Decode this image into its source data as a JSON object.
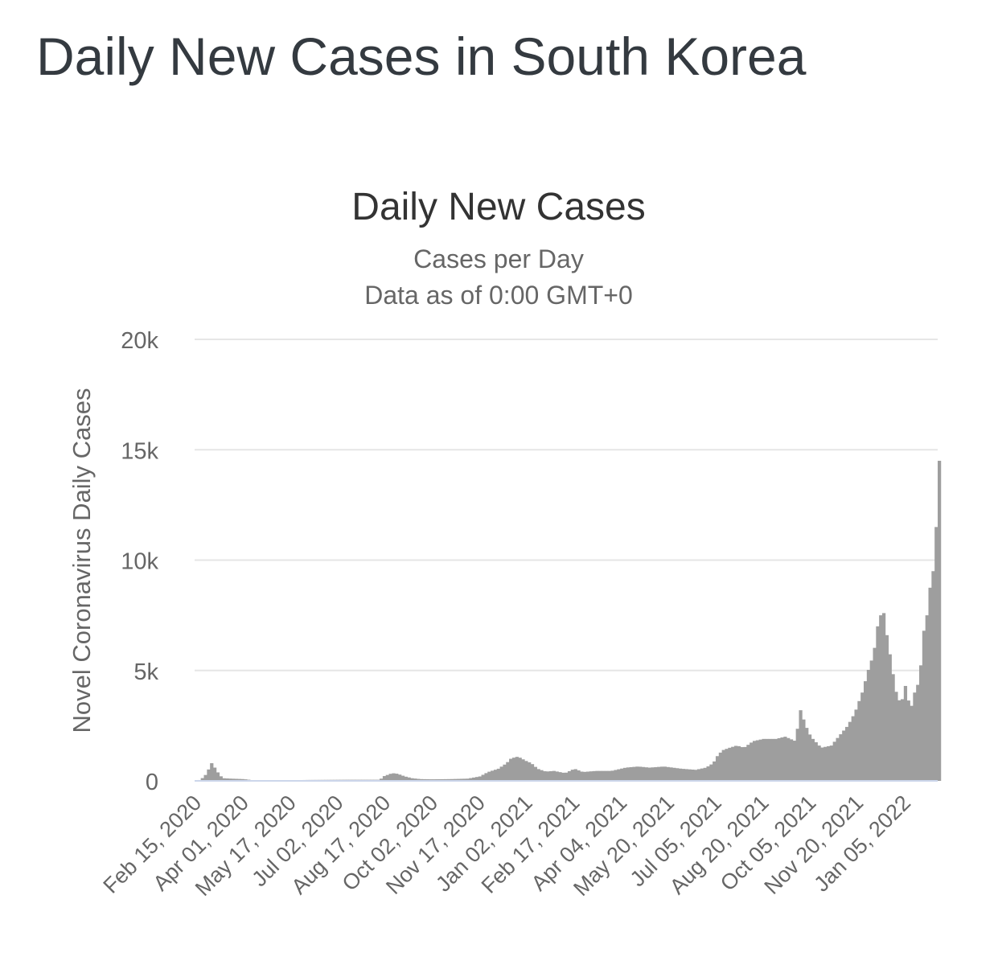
{
  "page": {
    "title": "Daily New Cases in South Korea"
  },
  "colors": {
    "bar": "#9e9e9e",
    "grid": "#e6e6e6",
    "baseline": "#ccd6eb",
    "title_text": "#333333",
    "label_text": "#666666"
  },
  "chart_data": {
    "type": "bar",
    "title": "Daily New Cases",
    "subtitle": "Cases per Day",
    "subtitle2": "Data as of 0:00 GMT+0",
    "xlabel": "",
    "ylabel": "Novel Coronavirus Daily Cases",
    "ylim": [
      0,
      20000
    ],
    "yticks": [
      0,
      5000,
      10000,
      15000,
      20000
    ],
    "ytick_labels": [
      "0",
      "5k",
      "10k",
      "15k",
      "20k"
    ],
    "xlim": [
      "2020-02-15",
      "2022-02-07"
    ],
    "xticks": [
      "2020-02-15",
      "2020-04-01",
      "2020-05-17",
      "2020-07-02",
      "2020-08-17",
      "2020-10-02",
      "2020-11-17",
      "2021-01-02",
      "2021-02-17",
      "2021-04-04",
      "2021-05-20",
      "2021-07-05",
      "2021-08-20",
      "2021-10-05",
      "2021-11-20",
      "2022-01-05"
    ],
    "xtick_labels": [
      "Feb 15, 2020",
      "Apr 01, 2020",
      "May 17, 2020",
      "Jul 02, 2020",
      "Aug 17, 2020",
      "Oct 02, 2020",
      "Nov 17, 2020",
      "Jan 02, 2021",
      "Feb 17, 2021",
      "Apr 04, 2021",
      "May 20, 2021",
      "Jul 05, 2021",
      "Aug 20, 2021",
      "Oct 05, 2021",
      "Nov 20, 2021",
      "Jan 05, 2022"
    ],
    "grid": true,
    "legend": "none",
    "series": [
      {
        "name": "",
        "points": [
          [
            "2020-02-15",
            0
          ],
          [
            "2020-02-19",
            50
          ],
          [
            "2020-02-23",
            200
          ],
          [
            "2020-02-26",
            400
          ],
          [
            "2020-02-29",
            750
          ],
          [
            "2020-03-02",
            850
          ],
          [
            "2020-03-04",
            600
          ],
          [
            "2020-03-06",
            450
          ],
          [
            "2020-03-09",
            250
          ],
          [
            "2020-03-12",
            120
          ],
          [
            "2020-03-20",
            100
          ],
          [
            "2020-04-01",
            80
          ],
          [
            "2020-04-10",
            30
          ],
          [
            "2020-05-01",
            10
          ],
          [
            "2020-06-01",
            40
          ],
          [
            "2020-07-10",
            50
          ],
          [
            "2020-08-12",
            50
          ],
          [
            "2020-08-15",
            200
          ],
          [
            "2020-08-18",
            250
          ],
          [
            "2020-08-22",
            320
          ],
          [
            "2020-08-26",
            350
          ],
          [
            "2020-08-30",
            300
          ],
          [
            "2020-09-05",
            200
          ],
          [
            "2020-09-12",
            120
          ],
          [
            "2020-09-20",
            80
          ],
          [
            "2020-10-01",
            70
          ],
          [
            "2020-10-20",
            80
          ],
          [
            "2020-11-05",
            100
          ],
          [
            "2020-11-17",
            200
          ],
          [
            "2020-11-25",
            400
          ],
          [
            "2020-12-05",
            550
          ],
          [
            "2020-12-13",
            800
          ],
          [
            "2020-12-17",
            1000
          ],
          [
            "2020-12-20",
            1050
          ],
          [
            "2020-12-24",
            1100
          ],
          [
            "2020-12-26",
            1050
          ],
          [
            "2021-01-01",
            900
          ],
          [
            "2021-01-06",
            800
          ],
          [
            "2021-01-12",
            550
          ],
          [
            "2021-01-20",
            420
          ],
          [
            "2021-01-28",
            450
          ],
          [
            "2021-02-08",
            350
          ],
          [
            "2021-02-17",
            550
          ],
          [
            "2021-02-25",
            400
          ],
          [
            "2021-03-10",
            450
          ],
          [
            "2021-03-25",
            450
          ],
          [
            "2021-04-08",
            600
          ],
          [
            "2021-04-20",
            650
          ],
          [
            "2021-05-01",
            600
          ],
          [
            "2021-05-15",
            650
          ],
          [
            "2021-06-01",
            550
          ],
          [
            "2021-06-15",
            500
          ],
          [
            "2021-06-25",
            600
          ],
          [
            "2021-07-02",
            800
          ],
          [
            "2021-07-07",
            1200
          ],
          [
            "2021-07-12",
            1400
          ],
          [
            "2021-07-18",
            1500
          ],
          [
            "2021-07-25",
            1600
          ],
          [
            "2021-08-01",
            1500
          ],
          [
            "2021-08-10",
            1800
          ],
          [
            "2021-08-20",
            1900
          ],
          [
            "2021-09-01",
            1900
          ],
          [
            "2021-09-10",
            2000
          ],
          [
            "2021-09-20",
            1800
          ],
          [
            "2021-09-25",
            3200
          ],
          [
            "2021-09-30",
            2500
          ],
          [
            "2021-10-05",
            2000
          ],
          [
            "2021-10-15",
            1500
          ],
          [
            "2021-10-25",
            1600
          ],
          [
            "2021-11-01",
            2000
          ],
          [
            "2021-11-10",
            2500
          ],
          [
            "2021-11-17",
            3100
          ],
          [
            "2021-11-24",
            4000
          ],
          [
            "2021-12-01",
            5200
          ],
          [
            "2021-12-05",
            5700
          ],
          [
            "2021-12-09",
            7000
          ],
          [
            "2021-12-12",
            7500
          ],
          [
            "2021-12-14",
            7800
          ],
          [
            "2021-12-16",
            7400
          ],
          [
            "2021-12-19",
            6200
          ],
          [
            "2021-12-22",
            5500
          ],
          [
            "2021-12-25",
            4500
          ],
          [
            "2021-12-28",
            3800
          ],
          [
            "2022-01-01",
            3500
          ],
          [
            "2022-01-05",
            4300
          ],
          [
            "2022-01-10",
            3200
          ],
          [
            "2022-01-15",
            4200
          ],
          [
            "2022-01-19",
            4500
          ],
          [
            "2022-01-22",
            6700
          ],
          [
            "2022-01-25",
            7000
          ],
          [
            "2022-01-28",
            8500
          ],
          [
            "2022-02-01",
            9500
          ],
          [
            "2022-02-04",
            11500
          ],
          [
            "2022-02-07",
            14500
          ]
        ]
      }
    ]
  }
}
